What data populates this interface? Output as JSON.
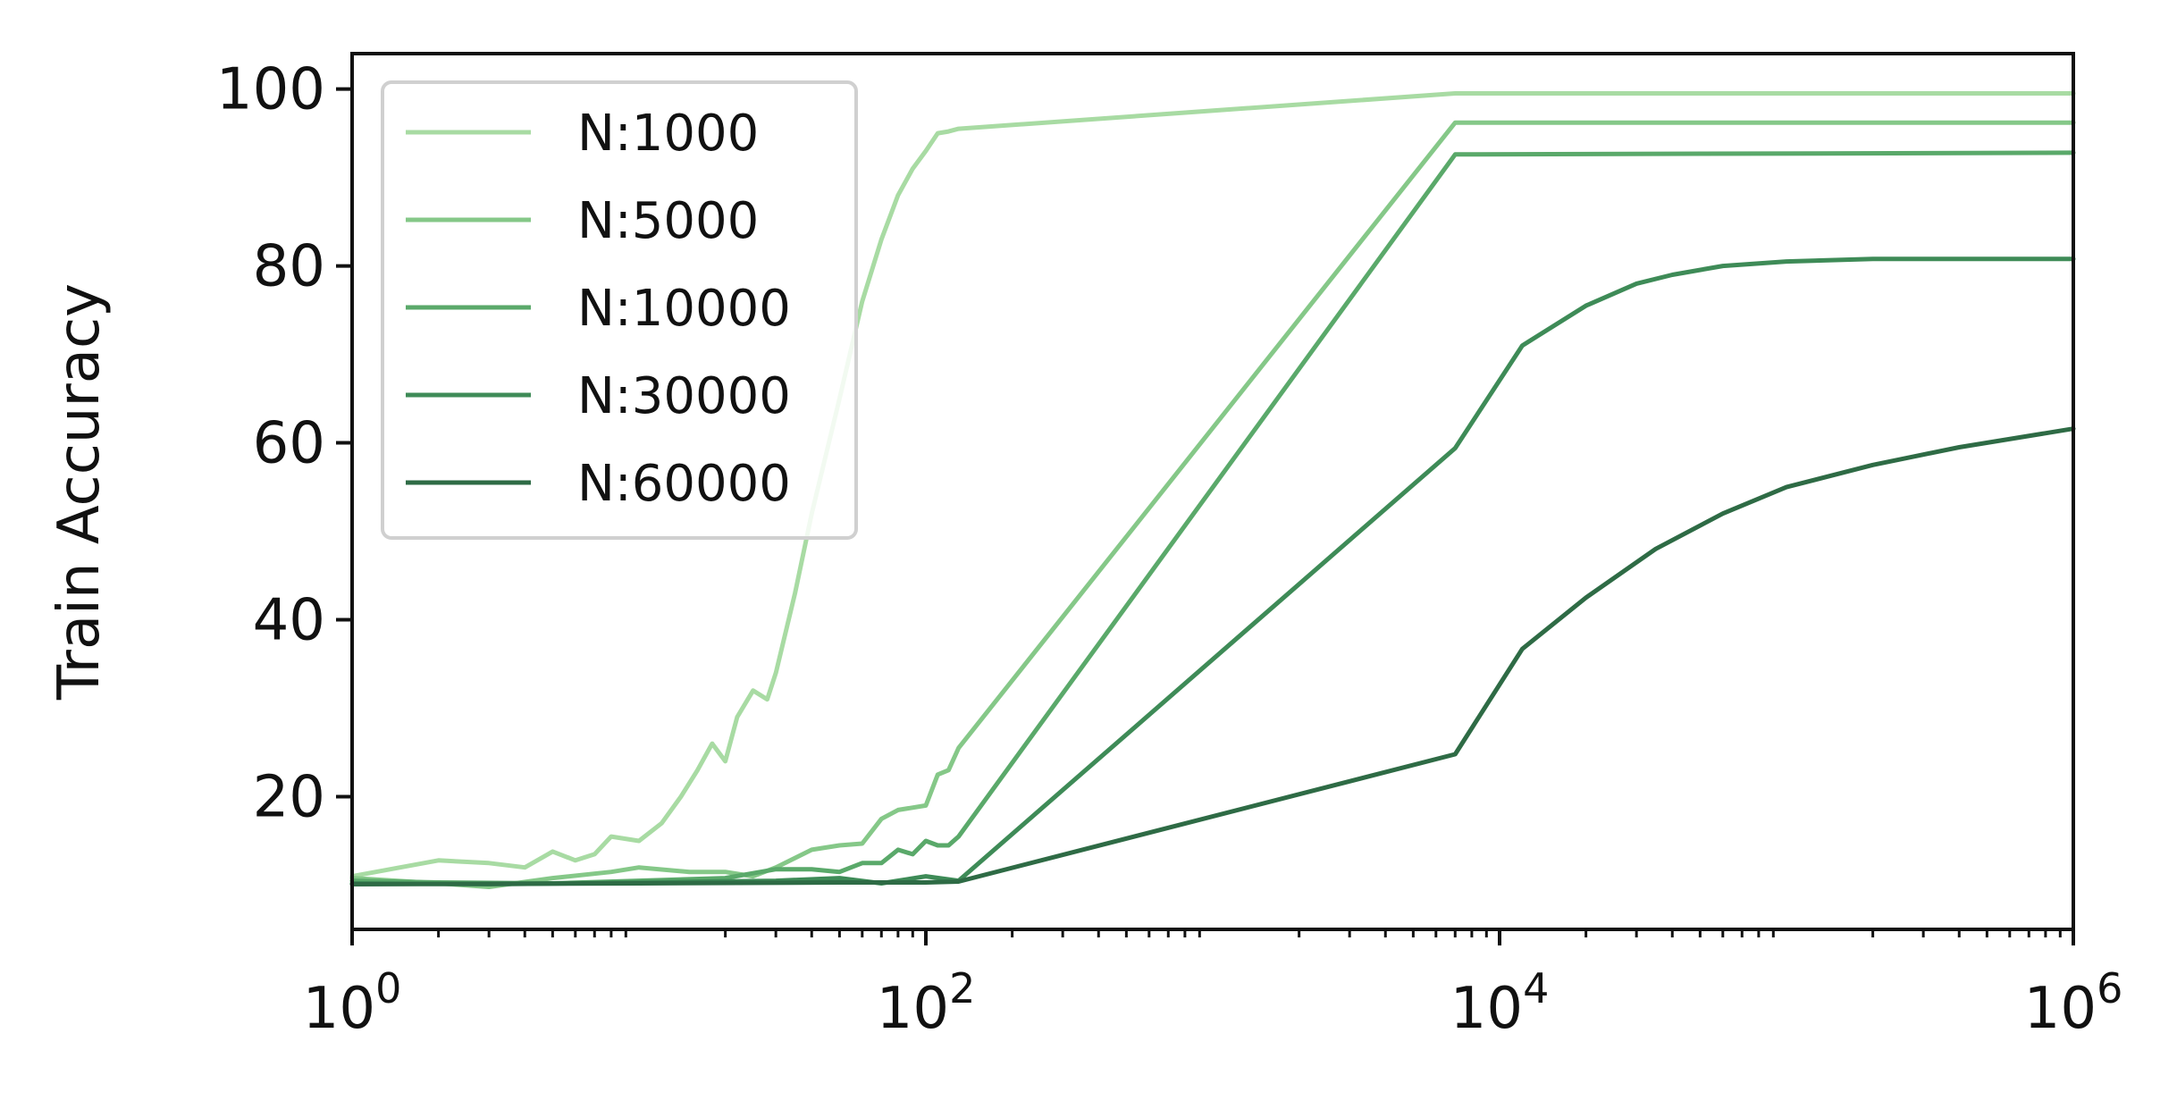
{
  "chart_data": {
    "type": "line",
    "title": "",
    "xlabel": "",
    "ylabel": "Train Accuracy",
    "xscale": "log",
    "xlim": [
      1,
      1000000
    ],
    "ylim": [
      5,
      104
    ],
    "grid": false,
    "legend_position": "top-left",
    "x_ticks": [
      {
        "value": 1,
        "base": "10",
        "exp": "0"
      },
      {
        "value": 100,
        "base": "10",
        "exp": "2"
      },
      {
        "value": 10000,
        "base": "10",
        "exp": "4"
      },
      {
        "value": 1000000,
        "base": "10",
        "exp": "6"
      }
    ],
    "y_ticks": [
      {
        "value": 20,
        "label": "20"
      },
      {
        "value": 40,
        "label": "40"
      },
      {
        "value": 60,
        "label": "60"
      },
      {
        "value": 80,
        "label": "80"
      },
      {
        "value": 100,
        "label": "100"
      }
    ],
    "series": [
      {
        "name": "N:1000",
        "color": "#a8dba3",
        "x": [
          1,
          2,
          3,
          4,
          5,
          6,
          7,
          8,
          10,
          12,
          14,
          16,
          18,
          20,
          22,
          25,
          28,
          30,
          35,
          40,
          50,
          60,
          70,
          80,
          90,
          100,
          110,
          120,
          130,
          7000,
          1000000
        ],
        "y": [
          11,
          12.8,
          12.5,
          12,
          13.8,
          12.8,
          13.5,
          15.5,
          15,
          17,
          20,
          23,
          26,
          24,
          29,
          32,
          31,
          34,
          43,
          52,
          65,
          76,
          83,
          88,
          91,
          93,
          95,
          95.2,
          95.5,
          99.5,
          99.5
        ]
      },
      {
        "name": "N:5000",
        "color": "#85c888",
        "x": [
          1,
          2,
          3,
          5,
          8,
          10,
          15,
          20,
          25,
          30,
          40,
          50,
          60,
          70,
          80,
          100,
          110,
          120,
          130,
          7000,
          1000000
        ],
        "y": [
          10.8,
          10.2,
          9.8,
          10.8,
          11.5,
          12,
          11.5,
          11.5,
          11,
          12,
          14,
          14.5,
          14.7,
          17.5,
          18.5,
          19,
          22.5,
          23,
          25.5,
          96.2,
          96.2
        ]
      },
      {
        "name": "N:10000",
        "color": "#5aa96a",
        "x": [
          1,
          2,
          5,
          10,
          20,
          30,
          40,
          50,
          60,
          70,
          80,
          90,
          100,
          110,
          120,
          130,
          7000,
          1000000
        ],
        "y": [
          10.5,
          10.3,
          10.2,
          10.5,
          10.8,
          11.8,
          11.8,
          11.5,
          12.5,
          12.5,
          14,
          13.5,
          15,
          14.5,
          14.5,
          15.5,
          92.6,
          92.8
        ]
      },
      {
        "name": "N:30000",
        "color": "#3e8b57",
        "x": [
          1,
          3,
          10,
          30,
          50,
          70,
          100,
          130,
          7000,
          12000,
          20000,
          30000,
          40000,
          60000,
          100000,
          200000,
          1000000
        ],
        "y": [
          10.2,
          10.1,
          10.3,
          10.5,
          10.8,
          10.2,
          11,
          10.5,
          59.4,
          71,
          75.5,
          78,
          79,
          80,
          80.5,
          80.8,
          80.8
        ]
      },
      {
        "name": "N:60000",
        "color": "#2e6b45",
        "x": [
          1,
          10,
          50,
          100,
          130,
          7000,
          12000,
          20000,
          35000,
          60000,
          100000,
          200000,
          400000,
          1000000
        ],
        "y": [
          10.1,
          10.2,
          10.3,
          10.3,
          10.4,
          24.8,
          36.7,
          42.5,
          48,
          52,
          55,
          57.5,
          59.5,
          61.6
        ]
      }
    ]
  }
}
